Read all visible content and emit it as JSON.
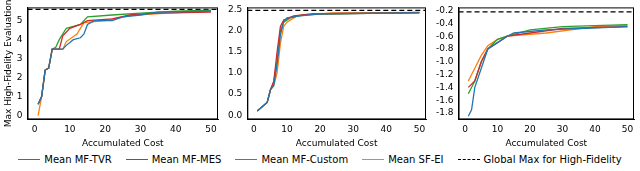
{
  "chart_data": [
    {
      "type": "line",
      "xlabel": "Accumulated Cost",
      "ylabel": "Max High-Fidelity Evaluation",
      "legend": "bottom",
      "xlim": [
        -2,
        52
      ],
      "xticks": [
        0,
        10,
        20,
        30,
        40,
        50
      ],
      "ylim": [
        -0.2,
        5.7
      ],
      "yticks": [
        0,
        1,
        2,
        3,
        4,
        5
      ],
      "series": [
        {
          "name": "Mean MF-TVR",
          "color": "#1f77b4",
          "x": [
            1,
            2,
            3,
            4,
            5,
            8,
            9,
            11,
            13,
            14,
            15,
            17,
            22,
            25,
            30,
            35,
            50
          ],
          "values": [
            0.6,
            1.0,
            2.4,
            2.5,
            3.5,
            3.5,
            3.7,
            4.0,
            4.1,
            4.3,
            4.8,
            5.0,
            5.0,
            5.2,
            5.3,
            5.45,
            5.5
          ]
        },
        {
          "name": "Mean MF-MES",
          "color": "#d62728",
          "x": [
            1,
            2,
            3,
            4,
            5,
            7,
            8,
            10,
            13,
            15,
            22,
            27,
            35,
            50
          ],
          "values": [
            0.6,
            1.0,
            2.4,
            2.5,
            3.5,
            3.5,
            4.2,
            4.6,
            4.8,
            5.0,
            5.1,
            5.3,
            5.4,
            5.45
          ]
        },
        {
          "name": "Mean MF-Custom",
          "color": "#2ca02c",
          "x": [
            1,
            2,
            3,
            4,
            5,
            6,
            7,
            9,
            11,
            13,
            15,
            22,
            30,
            40,
            50
          ],
          "values": [
            0.6,
            1.0,
            2.4,
            2.5,
            3.5,
            3.6,
            4.0,
            4.6,
            4.7,
            4.8,
            5.2,
            5.3,
            5.4,
            5.5,
            5.55
          ]
        },
        {
          "name": "Mean SF-EI",
          "color": "#ff7f0e",
          "x": [
            1,
            2,
            3,
            4,
            5,
            8,
            9,
            12,
            14,
            20,
            28,
            38,
            50
          ],
          "values": [
            0.0,
            1.0,
            2.4,
            2.5,
            3.5,
            3.5,
            3.9,
            4.3,
            4.9,
            5.0,
            5.3,
            5.4,
            5.5
          ]
        },
        {
          "name": "Global Max for High-Fidelity",
          "color": "#000000",
          "line_style": "dashed",
          "x": [
            -2,
            52
          ],
          "values": [
            5.6,
            5.6
          ]
        }
      ]
    },
    {
      "type": "line",
      "xlabel": "Accumulated Cost",
      "xlim": [
        -2,
        52
      ],
      "xticks": [
        0,
        10,
        20,
        30,
        40,
        50
      ],
      "ylim": [
        -0.1,
        2.55
      ],
      "yticks": [
        {
          "value": 0,
          "label": "0.0"
        },
        0.5,
        {
          "value": 1,
          "label": "1.0"
        },
        1.5,
        {
          "value": 2,
          "label": "2.0"
        },
        2.5
      ],
      "series": [
        {
          "name": "Mean MF-TVR",
          "color": "#1f77b4",
          "x": [
            1,
            4,
            5,
            6,
            7,
            8,
            9,
            10,
            14,
            20,
            50
          ],
          "values": [
            0.1,
            0.3,
            0.6,
            0.7,
            1.2,
            1.9,
            2.2,
            2.3,
            2.35,
            2.4,
            2.42
          ]
        },
        {
          "name": "Mean MF-MES",
          "color": "#d62728",
          "x": [
            1,
            4,
            5,
            6,
            7,
            8,
            9,
            12,
            18,
            50
          ],
          "values": [
            0.1,
            0.3,
            0.6,
            0.8,
            1.5,
            2.1,
            2.25,
            2.35,
            2.4,
            2.42
          ]
        },
        {
          "name": "Mean MF-Custom",
          "color": "#2ca02c",
          "x": [
            1,
            4,
            5,
            6,
            7,
            8,
            9,
            11,
            15,
            50
          ],
          "values": [
            0.1,
            0.3,
            0.6,
            0.8,
            1.3,
            2.0,
            2.2,
            2.3,
            2.38,
            2.43
          ]
        },
        {
          "name": "Mean SF-EI",
          "color": "#ff7f0e",
          "x": [
            1,
            4,
            5,
            6,
            7,
            8,
            9,
            10,
            13,
            24,
            50
          ],
          "values": [
            0.1,
            0.3,
            0.6,
            0.7,
            1.0,
            1.7,
            2.1,
            2.2,
            2.35,
            2.42,
            2.43
          ]
        },
        {
          "name": "Global Max for High-Fidelity",
          "color": "#000000",
          "line_style": "dashed",
          "x": [
            -2,
            52
          ],
          "values": [
            2.48,
            2.48
          ]
        }
      ]
    },
    {
      "type": "line",
      "xlabel": "Accumulated Cost",
      "xlim": [
        -2,
        52
      ],
      "xticks": [
        0,
        10,
        20,
        30,
        40,
        50
      ],
      "ylim": [
        -1.9,
        -0.15
      ],
      "yticks": [
        -1.8,
        -1.6,
        -1.4,
        -1.2,
        {
          "value": -1,
          "label": "-1.0"
        },
        -0.8,
        -0.6,
        -0.4,
        -0.2
      ],
      "series": [
        {
          "name": "Mean MF-TVR",
          "color": "#1f77b4",
          "x": [
            1,
            2,
            3,
            5,
            7,
            10,
            13,
            15,
            25,
            35,
            50
          ],
          "values": [
            -1.85,
            -1.75,
            -1.4,
            -1.1,
            -0.8,
            -0.7,
            -0.6,
            -0.55,
            -0.5,
            -0.48,
            -0.45
          ]
        },
        {
          "name": "Mean MF-MES",
          "color": "#d62728",
          "x": [
            1,
            3,
            5,
            7,
            10,
            13,
            20,
            30,
            50
          ],
          "values": [
            -1.4,
            -1.3,
            -1.0,
            -0.8,
            -0.7,
            -0.6,
            -0.55,
            -0.48,
            -0.45
          ]
        },
        {
          "name": "Mean MF-Custom",
          "color": "#2ca02c",
          "x": [
            1,
            3,
            5,
            7,
            10,
            13,
            20,
            30,
            50
          ],
          "values": [
            -1.5,
            -1.3,
            -1.0,
            -0.8,
            -0.65,
            -0.6,
            -0.5,
            -0.45,
            -0.42
          ]
        },
        {
          "name": "Mean SF-EI",
          "color": "#ff7f0e",
          "x": [
            1,
            3,
            5,
            7,
            10,
            13,
            25,
            40,
            50
          ],
          "values": [
            -1.3,
            -1.1,
            -0.9,
            -0.75,
            -0.65,
            -0.6,
            -0.55,
            -0.45,
            -0.43
          ]
        },
        {
          "name": "Global Max for High-Fidelity",
          "color": "#000000",
          "line_style": "dashed",
          "x": [
            -2,
            52
          ],
          "values": [
            -0.22,
            -0.22
          ]
        }
      ]
    }
  ]
}
